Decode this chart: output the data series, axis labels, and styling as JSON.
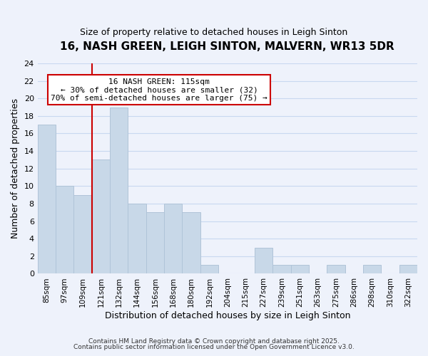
{
  "title": "16, NASH GREEN, LEIGH SINTON, MALVERN, WR13 5DR",
  "subtitle": "Size of property relative to detached houses in Leigh Sinton",
  "xlabel": "Distribution of detached houses by size in Leigh Sinton",
  "ylabel": "Number of detached properties",
  "bar_labels": [
    "85sqm",
    "97sqm",
    "109sqm",
    "121sqm",
    "132sqm",
    "144sqm",
    "156sqm",
    "168sqm",
    "180sqm",
    "192sqm",
    "204sqm",
    "215sqm",
    "227sqm",
    "239sqm",
    "251sqm",
    "263sqm",
    "275sqm",
    "286sqm",
    "298sqm",
    "310sqm",
    "322sqm"
  ],
  "bar_heights": [
    17,
    10,
    9,
    13,
    19,
    8,
    7,
    8,
    7,
    1,
    0,
    0,
    3,
    1,
    1,
    0,
    1,
    0,
    1,
    0,
    1
  ],
  "bar_color": "#c8d8e8",
  "bar_edge_color": "#b0c4d8",
  "grid_color": "#c8d8f0",
  "vline_x": 2.5,
  "vline_color": "#cc0000",
  "annotation_text": "16 NASH GREEN: 115sqm\n← 30% of detached houses are smaller (32)\n70% of semi-detached houses are larger (75) →",
  "annotation_box_color": "white",
  "annotation_box_edge": "#cc0000",
  "ylim": [
    0,
    24
  ],
  "yticks": [
    0,
    2,
    4,
    6,
    8,
    10,
    12,
    14,
    16,
    18,
    20,
    22,
    24
  ],
  "footnote1": "Contains HM Land Registry data © Crown copyright and database right 2025.",
  "footnote2": "Contains public sector information licensed under the Open Government Licence v3.0.",
  "background_color": "#eef2fb"
}
